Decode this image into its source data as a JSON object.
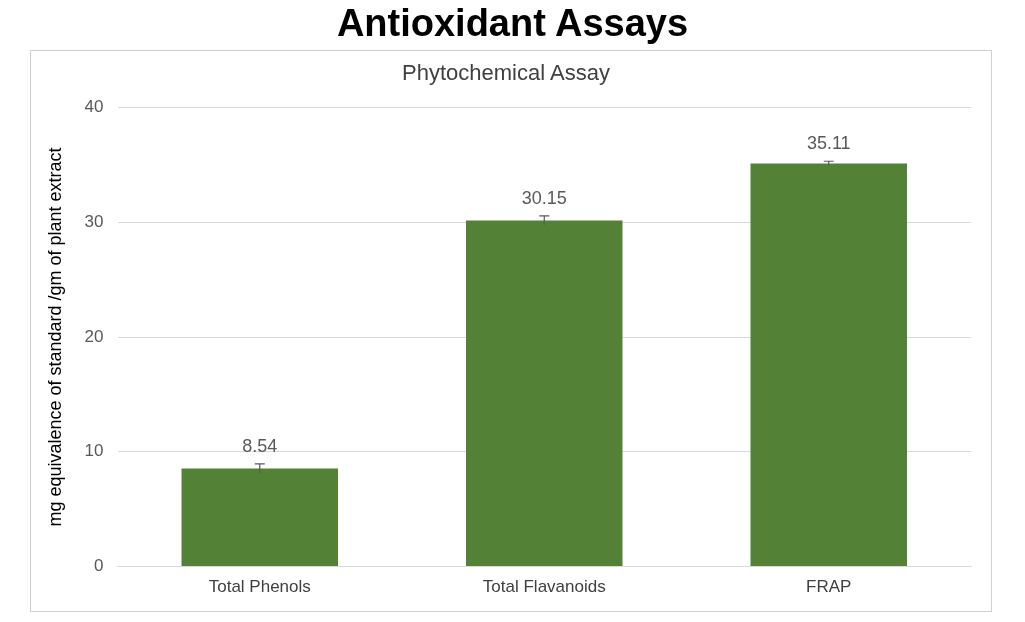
{
  "chart_data": {
    "type": "bar",
    "title": "Antioxidant Assays",
    "subtitle": "Phytochemical Assay",
    "ylabel": "mg equivalence of standard /gm of plant extract",
    "categories": [
      "Total Phenols",
      "Total Flavanoids",
      "FRAP"
    ],
    "values": [
      8.54,
      30.15,
      35.11
    ],
    "errors": [
      0.4,
      0.4,
      0.2
    ],
    "color": "#538135",
    "ylim": [
      0,
      40
    ],
    "yticks": [
      0,
      10,
      20,
      30,
      40
    ],
    "grid": "y",
    "data_labels": true
  }
}
